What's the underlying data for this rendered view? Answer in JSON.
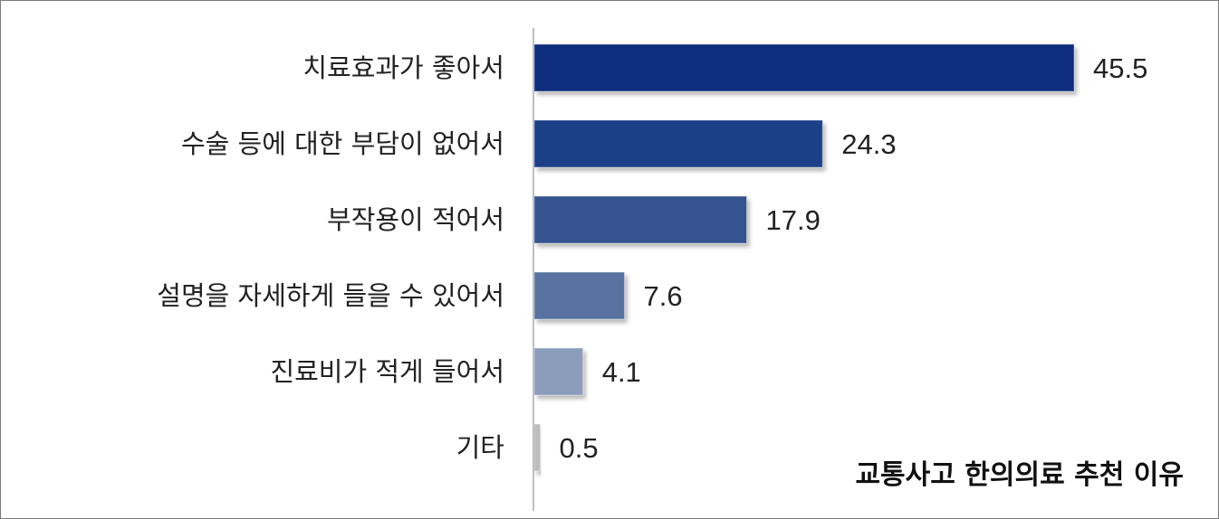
{
  "chart_data": {
    "type": "bar",
    "orientation": "horizontal",
    "title": "교통사고 한의의료 추천 이유",
    "categories": [
      "치료효과가 좋아서",
      "수술 등에 대한 부담이 없어서",
      "부작용이 적어서",
      "설명을 자세하게 들을 수 있어서",
      "진료비가 적게 들어서",
      "기타"
    ],
    "values": [
      45.5,
      24.3,
      17.9,
      7.6,
      4.1,
      0.5
    ],
    "value_labels": [
      "45.5",
      "24.3",
      "17.9",
      "7.6",
      "4.1",
      "0.5"
    ],
    "xlim": [
      0,
      45.5
    ],
    "grid": false,
    "legend": "none",
    "colors": {
      "bars": [
        "#0d2f7c",
        "#1c3f88",
        "#34528f",
        "#5873a0",
        "#8c9dbc",
        "#bdbdbd"
      ],
      "axis": "#bfbfbf",
      "text": "#222222"
    }
  }
}
